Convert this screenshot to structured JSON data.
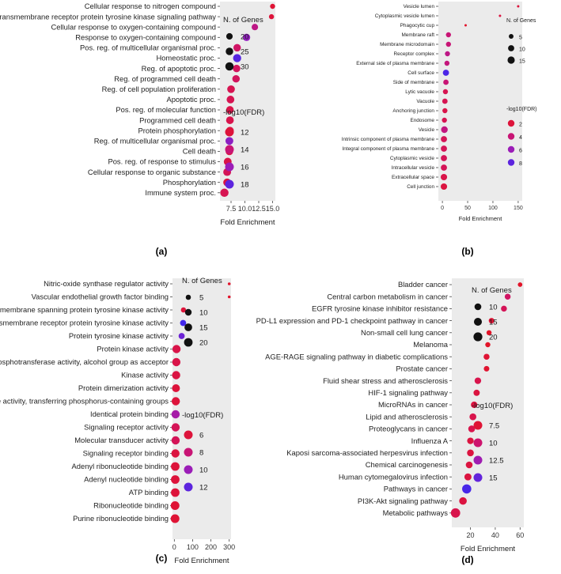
{
  "chart_data": [
    {
      "id": "a",
      "panel_label": "(a)",
      "type": "scatter",
      "xlabel": "Fold Enrichment",
      "xticks": [
        "7.5",
        "10.0",
        "12.5",
        "15.0"
      ],
      "xlim": [
        5.5,
        15.5
      ],
      "size_legend_title": "N. of Genes",
      "size_legend_values": [
        20,
        25,
        30
      ],
      "size_range": [
        15,
        33
      ],
      "color_legend_title": "-log10(FDR)",
      "color_legend_values": [
        12,
        14,
        16,
        18
      ],
      "color_range": [
        11,
        19
      ],
      "series": [
        {
          "term": "Cellular response to nitrogen compound",
          "fold": 15.0,
          "genes": 16,
          "fdr": 11.8
        },
        {
          "term": "Transmembrane receptor protein tyrosine kinase signaling pathway",
          "fold": 14.8,
          "genes": 16,
          "fdr": 12.0
        },
        {
          "term": "Cellular response to oxygen-containing compound",
          "fold": 11.8,
          "genes": 20,
          "fdr": 14.5
        },
        {
          "term": "Response to oxygen-containing compound",
          "fold": 10.3,
          "genes": 24,
          "fdr": 16.3
        },
        {
          "term": "Pos. reg. of multicellular organismal proc.",
          "fold": 8.6,
          "genes": 25,
          "fdr": 13.5
        },
        {
          "term": "Homeostatic proc.",
          "fold": 8.6,
          "genes": 29,
          "fdr": 18.2
        },
        {
          "term": "Reg. of apoptotic proc.",
          "fold": 8.5,
          "genes": 25,
          "fdr": 13.2
        },
        {
          "term": "Reg. of programmed cell death",
          "fold": 8.4,
          "genes": 25,
          "fdr": 13.2
        },
        {
          "term": "Reg. of cell population proliferation",
          "fold": 7.5,
          "genes": 26,
          "fdr": 12.8
        },
        {
          "term": "Apoptotic proc.",
          "fold": 7.4,
          "genes": 26,
          "fdr": 12.8
        },
        {
          "term": "Pos. reg. of molecular function",
          "fold": 7.3,
          "genes": 26,
          "fdr": 12.5
        },
        {
          "term": "Programmed cell death",
          "fold": 7.3,
          "genes": 26,
          "fdr": 12.6
        },
        {
          "term": "Protein phosphorylation",
          "fold": 7.3,
          "genes": 26,
          "fdr": 12.5
        },
        {
          "term": "Reg. of multicellular organismal proc.",
          "fold": 7.2,
          "genes": 27,
          "fdr": 16.5
        },
        {
          "term": "Cell death",
          "fold": 7.2,
          "genes": 26,
          "fdr": 12.5
        },
        {
          "term": "Pos. reg. of response to stimulus",
          "fold": 6.9,
          "genes": 27,
          "fdr": 12.5
        },
        {
          "term": "Cellular response to organic substance",
          "fold": 6.8,
          "genes": 27,
          "fdr": 13.0
        },
        {
          "term": "Phosphorylation",
          "fold": 6.8,
          "genes": 27,
          "fdr": 12.3
        },
        {
          "term": "Immune system proc.",
          "fold": 6.3,
          "genes": 30,
          "fdr": 12.8
        }
      ]
    },
    {
      "id": "b",
      "panel_label": "(b)",
      "type": "scatter",
      "xlabel": "Fold Enrichment",
      "xticks": [
        "0",
        "50",
        "100",
        "150"
      ],
      "xlim": [
        -8,
        158
      ],
      "size_legend_title": "N. of Genes",
      "size_legend_values": [
        5,
        10,
        15
      ],
      "size_range": [
        2,
        17
      ],
      "color_legend_title": "-log10(FDR)",
      "color_legend_values": [
        2,
        4,
        6,
        8
      ],
      "color_range": [
        1,
        9
      ],
      "series": [
        {
          "term": "Vesicle lumen",
          "fold": 150,
          "genes": 2,
          "fdr": 2.0
        },
        {
          "term": "Cytoplasmic vesicle lumen",
          "fold": 114,
          "genes": 2,
          "fdr": 2.2
        },
        {
          "term": "Phagocytic cup",
          "fold": 46,
          "genes": 2,
          "fdr": 1.5
        },
        {
          "term": "Membrane raft",
          "fold": 12,
          "genes": 6,
          "fdr": 4.0
        },
        {
          "term": "Membrane microdomain",
          "fold": 12,
          "genes": 6,
          "fdr": 4.0
        },
        {
          "term": "Receptor complex",
          "fold": 10,
          "genes": 6,
          "fdr": 4.5
        },
        {
          "term": "External side of plasma membrane",
          "fold": 9,
          "genes": 6,
          "fdr": 4.2
        },
        {
          "term": "Cell surface",
          "fold": 7,
          "genes": 10,
          "fdr": 8.5
        },
        {
          "term": "Side of membrane",
          "fold": 7,
          "genes": 7,
          "fdr": 4.0
        },
        {
          "term": "Lytic vacuole",
          "fold": 6,
          "genes": 6,
          "fdr": 2.8
        },
        {
          "term": "Vacuole",
          "fold": 5,
          "genes": 7,
          "fdr": 2.8
        },
        {
          "term": "Anchoring junction",
          "fold": 5,
          "genes": 6,
          "fdr": 2.5
        },
        {
          "term": "Endosome",
          "fold": 4,
          "genes": 6,
          "fdr": 2.8
        },
        {
          "term": "Vesicle",
          "fold": 4,
          "genes": 12,
          "fdr": 4.3
        },
        {
          "term": "Intrinsic component of plasma membrane",
          "fold": 3,
          "genes": 10,
          "fdr": 3.0
        },
        {
          "term": "Integral component of plasma membrane",
          "fold": 3,
          "genes": 10,
          "fdr": 3.0
        },
        {
          "term": "Cytoplasmic vesicle",
          "fold": 3,
          "genes": 10,
          "fdr": 3.0
        },
        {
          "term": "Intracellular vesicle",
          "fold": 3,
          "genes": 10,
          "fdr": 3.0
        },
        {
          "term": "Extracellular space",
          "fold": 3,
          "genes": 11,
          "fdr": 2.5
        },
        {
          "term": "Cell junction",
          "fold": 3,
          "genes": 11,
          "fdr": 2.2
        }
      ]
    },
    {
      "id": "c",
      "panel_label": "(c)",
      "type": "scatter",
      "xlabel": "Fold Enrichment",
      "xticks": [
        "0",
        "100",
        "200",
        "300"
      ],
      "xlim": [
        -10,
        310
      ],
      "size_legend_title": "N. of Genes",
      "size_legend_values": [
        5,
        10,
        15,
        20
      ],
      "size_range": [
        2,
        22
      ],
      "color_legend_title": "-log10(FDR)",
      "color_legend_values": [
        6,
        8,
        10,
        12
      ],
      "color_range": [
        5,
        13
      ],
      "series": [
        {
          "term": "Nitric-oxide synthase regulator activity",
          "fold": 300,
          "genes": 2,
          "fdr": 5.5
        },
        {
          "term": "Vascular endothelial growth factor binding",
          "fold": 300,
          "genes": 2,
          "fdr": 5.5
        },
        {
          "term": "Non-membrane spanning protein tyrosine kinase activity",
          "fold": 50,
          "genes": 5,
          "fdr": 6.0
        },
        {
          "term": "Transmembrane receptor protein tyrosine kinase activity",
          "fold": 48,
          "genes": 8,
          "fdr": 12.8
        },
        {
          "term": "Protein tyrosine kinase activity",
          "fold": 40,
          "genes": 8,
          "fdr": 11.5
        },
        {
          "term": "Protein kinase activity",
          "fold": 12,
          "genes": 18,
          "fdr": 6.5
        },
        {
          "term": "Phosphotransferase activity, alcohol group as acceptor",
          "fold": 11,
          "genes": 18,
          "fdr": 6.5
        },
        {
          "term": "Kinase activity",
          "fold": 10,
          "genes": 18,
          "fdr": 6.3
        },
        {
          "term": "Protein dimerization activity",
          "fold": 9,
          "genes": 16,
          "fdr": 6.0
        },
        {
          "term": "Transferase activity, transferring phosphorus-containing groups",
          "fold": 8,
          "genes": 18,
          "fdr": 6.0
        },
        {
          "term": "Identical protein binding",
          "fold": 7,
          "genes": 18,
          "fdr": 9.5
        },
        {
          "term": "Signaling receptor activity",
          "fold": 7,
          "genes": 18,
          "fdr": 7.0
        },
        {
          "term": "Molecular transducer activity",
          "fold": 7,
          "genes": 18,
          "fdr": 7.0
        },
        {
          "term": "Signaling receptor binding",
          "fold": 6,
          "genes": 18,
          "fdr": 6.2
        },
        {
          "term": "Adenyl ribonucleotide binding",
          "fold": 5,
          "genes": 20,
          "fdr": 6.0
        },
        {
          "term": "Adenyl nucleotide binding",
          "fold": 5,
          "genes": 20,
          "fdr": 6.0
        },
        {
          "term": "ATP binding",
          "fold": 5,
          "genes": 20,
          "fdr": 6.0
        },
        {
          "term": "Ribonucleotide binding",
          "fold": 4,
          "genes": 21,
          "fdr": 5.8
        },
        {
          "term": "Purine ribonucleotide binding",
          "fold": 4,
          "genes": 21,
          "fdr": 5.8
        }
      ]
    },
    {
      "id": "d",
      "panel_label": "(d)",
      "type": "scatter",
      "xlabel": "Fold Enrichment",
      "xticks": [
        "20",
        "40",
        "60"
      ],
      "xlim": [
        5,
        63
      ],
      "size_legend_title": "N. of Genes",
      "size_legend_values": [
        10,
        15,
        20
      ],
      "size_range": [
        3,
        24
      ],
      "color_legend_title": "-log10(FDR)",
      "color_legend_values": [
        7.5,
        10.0,
        12.5,
        15.0
      ],
      "color_range": [
        6.5,
        16.5
      ],
      "series": [
        {
          "term": "Bladder cancer",
          "fold": 60,
          "genes": 4,
          "fdr": 7.0
        },
        {
          "term": "Central carbon metabolism in cancer",
          "fold": 50,
          "genes": 7,
          "fdr": 9.5
        },
        {
          "term": "EGFR tyrosine kinase inhibitor resistance",
          "fold": 47,
          "genes": 7,
          "fdr": 9.0
        },
        {
          "term": "PD-L1 expression and PD-1 checkpoint pathway in cancer",
          "fold": 37,
          "genes": 6,
          "fdr": 7.5
        },
        {
          "term": "Non-small cell lung cancer",
          "fold": 35,
          "genes": 5,
          "fdr": 7.0
        },
        {
          "term": "Melanoma",
          "fold": 34,
          "genes": 5,
          "fdr": 7.0
        },
        {
          "term": "AGE-RAGE signaling pathway in diabetic complications",
          "fold": 33,
          "genes": 7,
          "fdr": 7.5
        },
        {
          "term": "Prostate cancer",
          "fold": 33,
          "genes": 6,
          "fdr": 7.3
        },
        {
          "term": "Fluid shear stress and atherosclerosis",
          "fold": 26,
          "genes": 9,
          "fdr": 8.5
        },
        {
          "term": "HIF-1 signaling pathway",
          "fold": 25,
          "genes": 8,
          "fdr": 8.0
        },
        {
          "term": "MicroRNAs in cancer",
          "fold": 23,
          "genes": 9,
          "fdr": 8.0
        },
        {
          "term": "Lipid and atherosclerosis",
          "fold": 22,
          "genes": 10,
          "fdr": 8.5
        },
        {
          "term": "Proteoglycans in cancer",
          "fold": 21,
          "genes": 10,
          "fdr": 8.5
        },
        {
          "term": "Influenza A",
          "fold": 20,
          "genes": 9,
          "fdr": 8.0
        },
        {
          "term": "Kaposi sarcoma-associated herpesvirus infection",
          "fold": 20,
          "genes": 10,
          "fdr": 8.0
        },
        {
          "term": "Chemical carcinogenesis",
          "fold": 19,
          "genes": 10,
          "fdr": 8.0
        },
        {
          "term": "Human cytomegalovirus infection",
          "fold": 18,
          "genes": 11,
          "fdr": 8.0
        },
        {
          "term": "Pathways in cancer",
          "fold": 17,
          "genes": 22,
          "fdr": 16.0
        },
        {
          "term": "PI3K-Akt signaling pathway",
          "fold": 14,
          "genes": 13,
          "fdr": 8.0
        },
        {
          "term": "Metabolic pathways",
          "fold": 8,
          "genes": 23,
          "fdr": 8.5
        }
      ]
    }
  ]
}
